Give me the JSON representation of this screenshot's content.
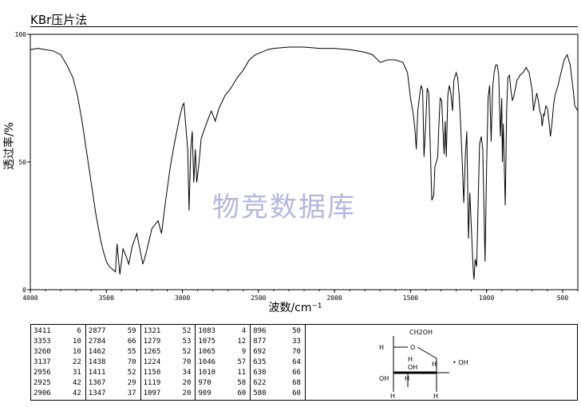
{
  "header": {
    "title": "KBr压片法"
  },
  "watermark": "物竞数据库",
  "chart_data": {
    "type": "line",
    "xlabel": "波数/cm⁻¹",
    "ylabel": "透过率/%",
    "xlim": [
      4000,
      400
    ],
    "ylim": [
      0,
      100
    ],
    "x_ticks": [
      "4000",
      "3500",
      "3000",
      "2500",
      "2000",
      "1500",
      "1000",
      "500"
    ],
    "y_ticks": [
      "0",
      "50",
      "100"
    ],
    "grid": false,
    "series": [
      {
        "points": [
          [
            4000,
            94
          ],
          [
            3950,
            94.5
          ],
          [
            3900,
            94
          ],
          [
            3850,
            93.5
          ],
          [
            3800,
            92
          ],
          [
            3760,
            88
          ],
          [
            3720,
            83
          ],
          [
            3690,
            76
          ],
          [
            3660,
            66
          ],
          [
            3630,
            54
          ],
          [
            3600,
            42
          ],
          [
            3570,
            30
          ],
          [
            3540,
            20
          ],
          [
            3520,
            15
          ],
          [
            3500,
            11
          ],
          [
            3480,
            9
          ],
          [
            3460,
            8
          ],
          [
            3440,
            7
          ],
          [
            3430,
            18
          ],
          [
            3411,
            6
          ],
          [
            3390,
            16
          ],
          [
            3370,
            13
          ],
          [
            3353,
            10
          ],
          [
            3330,
            17
          ],
          [
            3300,
            22
          ],
          [
            3280,
            16
          ],
          [
            3260,
            10
          ],
          [
            3240,
            14
          ],
          [
            3200,
            24
          ],
          [
            3160,
            27
          ],
          [
            3137,
            22
          ],
          [
            3110,
            35
          ],
          [
            3080,
            48
          ],
          [
            3050,
            58
          ],
          [
            3020,
            67
          ],
          [
            3000,
            72
          ],
          [
            2990,
            73
          ],
          [
            2975,
            62
          ],
          [
            2965,
            55
          ],
          [
            2956,
            31
          ],
          [
            2945,
            55
          ],
          [
            2935,
            62
          ],
          [
            2925,
            42
          ],
          [
            2915,
            55
          ],
          [
            2906,
            42
          ],
          [
            2890,
            50
          ],
          [
            2877,
            59
          ],
          [
            2860,
            62
          ],
          [
            2830,
            67
          ],
          [
            2810,
            70
          ],
          [
            2784,
            66
          ],
          [
            2760,
            71
          ],
          [
            2720,
            76
          ],
          [
            2680,
            79
          ],
          [
            2640,
            83
          ],
          [
            2600,
            86
          ],
          [
            2560,
            90
          ],
          [
            2520,
            92
          ],
          [
            2480,
            93
          ],
          [
            2440,
            94
          ],
          [
            2400,
            94.5
          ],
          [
            2300,
            95
          ],
          [
            2200,
            95
          ],
          [
            2100,
            94.5
          ],
          [
            2000,
            94.5
          ],
          [
            1900,
            94
          ],
          [
            1800,
            93
          ],
          [
            1750,
            92
          ],
          [
            1700,
            89
          ],
          [
            1650,
            90
          ],
          [
            1600,
            90
          ],
          [
            1550,
            89
          ],
          [
            1520,
            85
          ],
          [
            1500,
            75
          ],
          [
            1480,
            68
          ],
          [
            1470,
            62
          ],
          [
            1462,
            55
          ],
          [
            1452,
            70
          ],
          [
            1440,
            76
          ],
          [
            1430,
            80
          ],
          [
            1420,
            78
          ],
          [
            1411,
            52
          ],
          [
            1400,
            65
          ],
          [
            1390,
            79
          ],
          [
            1380,
            77
          ],
          [
            1370,
            55
          ],
          [
            1360,
            35
          ],
          [
            1347,
            37
          ],
          [
            1340,
            48
          ],
          [
            1321,
            52
          ],
          [
            1315,
            62
          ],
          [
            1305,
            75
          ],
          [
            1295,
            74
          ],
          [
            1285,
            60
          ],
          [
            1279,
            53
          ],
          [
            1272,
            66
          ],
          [
            1265,
            52
          ],
          [
            1255,
            76
          ],
          [
            1245,
            80
          ],
          [
            1235,
            77
          ],
          [
            1224,
            70
          ],
          [
            1215,
            82
          ],
          [
            1200,
            85
          ],
          [
            1190,
            83
          ],
          [
            1180,
            76
          ],
          [
            1170,
            64
          ],
          [
            1160,
            50
          ],
          [
            1150,
            34
          ],
          [
            1140,
            52
          ],
          [
            1130,
            62
          ],
          [
            1119,
            20
          ],
          [
            1110,
            38
          ],
          [
            1097,
            20
          ],
          [
            1088,
            8
          ],
          [
            1083,
            4
          ],
          [
            1075,
            12
          ],
          [
            1065,
            9
          ],
          [
            1055,
            35
          ],
          [
            1046,
            57
          ],
          [
            1035,
            60
          ],
          [
            1025,
            55
          ],
          [
            1010,
            11
          ],
          [
            1000,
            48
          ],
          [
            990,
            75
          ],
          [
            980,
            80
          ],
          [
            970,
            58
          ],
          [
            960,
            79
          ],
          [
            950,
            85
          ],
          [
            940,
            88
          ],
          [
            930,
            88
          ],
          [
            920,
            84
          ],
          [
            909,
            60
          ],
          [
            900,
            75
          ],
          [
            896,
            50
          ],
          [
            890,
            65
          ],
          [
            877,
            33
          ],
          [
            868,
            70
          ],
          [
            860,
            83
          ],
          [
            850,
            84
          ],
          [
            840,
            78
          ],
          [
            830,
            74
          ],
          [
            820,
            76
          ],
          [
            800,
            82
          ],
          [
            780,
            84
          ],
          [
            760,
            85
          ],
          [
            740,
            87
          ],
          [
            720,
            85
          ],
          [
            700,
            78
          ],
          [
            692,
            70
          ],
          [
            680,
            74
          ],
          [
            670,
            77
          ],
          [
            660,
            74
          ],
          [
            650,
            70
          ],
          [
            640,
            68
          ],
          [
            635,
            64
          ],
          [
            630,
            66
          ],
          [
            625,
            69
          ],
          [
            622,
            68
          ],
          [
            610,
            72
          ],
          [
            600,
            71
          ],
          [
            590,
            66
          ],
          [
            580,
            60
          ],
          [
            570,
            65
          ],
          [
            560,
            72
          ],
          [
            550,
            76
          ],
          [
            530,
            80
          ],
          [
            510,
            85
          ],
          [
            490,
            90
          ],
          [
            470,
            92
          ],
          [
            450,
            88
          ],
          [
            430,
            78
          ],
          [
            420,
            72
          ],
          [
            400,
            70
          ]
        ]
      }
    ]
  },
  "peak_table": {
    "columns": [
      [
        [
          "3411",
          "6"
        ],
        [
          "3353",
          "10"
        ],
        [
          "3260",
          "10"
        ],
        [
          "3137",
          "22"
        ],
        [
          "2956",
          "31"
        ],
        [
          "2925",
          "42"
        ],
        [
          "2906",
          "42"
        ]
      ],
      [
        [
          "2877",
          "59"
        ],
        [
          "2784",
          "66"
        ],
        [
          "1462",
          "55"
        ],
        [
          "1438",
          "70"
        ],
        [
          "1411",
          "52"
        ],
        [
          "1367",
          "29"
        ],
        [
          "1347",
          "37"
        ]
      ],
      [
        [
          "1321",
          "52"
        ],
        [
          "1279",
          "53"
        ],
        [
          "1265",
          "52"
        ],
        [
          "1224",
          "70"
        ],
        [
          "1150",
          "34"
        ],
        [
          "1119",
          "20"
        ],
        [
          "1097",
          "20"
        ]
      ],
      [
        [
          "1083",
          "4"
        ],
        [
          "1075",
          "12"
        ],
        [
          "1065",
          "9"
        ],
        [
          "1046",
          "57"
        ],
        [
          "1010",
          "11"
        ],
        [
          "970",
          "58"
        ],
        [
          "909",
          "60"
        ]
      ],
      [
        [
          "896",
          "50"
        ],
        [
          "877",
          "33"
        ],
        [
          "692",
          "70"
        ],
        [
          "635",
          "64"
        ],
        [
          "630",
          "66"
        ],
        [
          "622",
          "68"
        ],
        [
          "580",
          "60"
        ]
      ]
    ]
  },
  "structure": {
    "labels": [
      "CH2OH",
      "O",
      "H",
      "H",
      "OH",
      "H",
      "OH",
      "H",
      "H",
      "H",
      "• OH"
    ]
  }
}
